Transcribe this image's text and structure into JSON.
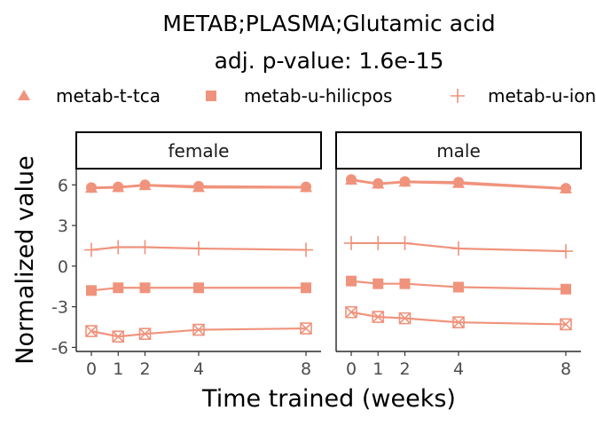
{
  "chart_data": {
    "type": "line",
    "title": "METAB;PLASMA;Glutamic acid",
    "subtitle": "adj. p-value: 1.6e-15",
    "xlabel": "Time trained (weeks)",
    "ylabel": "Normalized value",
    "x": [
      0,
      1,
      2,
      4,
      8
    ],
    "x_ticks": [
      "0",
      "1",
      "2",
      "4",
      "8"
    ],
    "y_ticks": [
      "-6",
      "-3",
      "0",
      "3",
      "6"
    ],
    "ylim": [
      -6.3,
      7.2
    ],
    "color": "#F0937C",
    "legend": {
      "position": "top",
      "entries": [
        {
          "label": "metab-t-tca",
          "marker": "triangle"
        },
        {
          "label": "metab-u-hilicpos",
          "marker": "square"
        },
        {
          "label": "metab-u-ionpneg",
          "marker": "plus"
        }
      ]
    },
    "panels": [
      {
        "label": "female",
        "series": [
          {
            "marker": "circle",
            "values": [
              5.8,
              5.85,
              6.0,
              5.9,
              5.85
            ]
          },
          {
            "marker": "triangle",
            "values": [
              5.75,
              5.8,
              5.95,
              5.8,
              5.8
            ]
          },
          {
            "marker": "plus",
            "values": [
              1.2,
              1.4,
              1.4,
              1.3,
              1.2
            ]
          },
          {
            "marker": "square",
            "values": [
              -1.8,
              -1.6,
              -1.6,
              -1.6,
              -1.6
            ]
          },
          {
            "marker": "square-x",
            "values": [
              -4.8,
              -5.2,
              -5.0,
              -4.7,
              -4.6
            ]
          }
        ]
      },
      {
        "label": "male",
        "series": [
          {
            "marker": "circle",
            "values": [
              6.4,
              6.1,
              6.25,
              6.2,
              5.75
            ]
          },
          {
            "marker": "triangle",
            "values": [
              6.35,
              6.05,
              6.2,
              6.1,
              5.7
            ]
          },
          {
            "marker": "plus",
            "values": [
              1.7,
              1.7,
              1.7,
              1.3,
              1.1
            ]
          },
          {
            "marker": "square",
            "values": [
              -1.1,
              -1.3,
              -1.3,
              -1.55,
              -1.7
            ]
          },
          {
            "marker": "square-x",
            "values": [
              -3.4,
              -3.75,
              -3.85,
              -4.15,
              -4.3
            ]
          }
        ]
      }
    ]
  }
}
